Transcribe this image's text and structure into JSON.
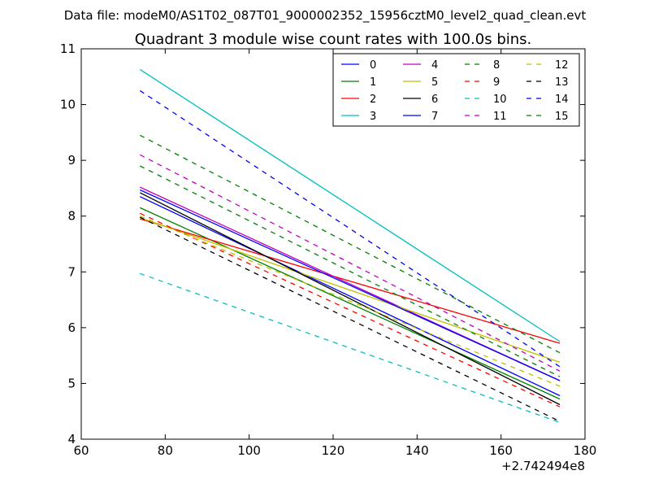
{
  "chart_data": {
    "type": "line",
    "suptitle": "Data file: modeM0/AS1T02_087T01_9000002352_15956cztM0_level2_quad_clean.evt",
    "title": "Quadrant 3 module wise count rates with 100.0s bins.",
    "xlabel": "",
    "ylabel": "",
    "x_offset_label": "+2.742494e8",
    "xlim": [
      60,
      180
    ],
    "ylim": [
      4,
      11
    ],
    "xticks": [
      60,
      80,
      100,
      120,
      140,
      160,
      180
    ],
    "yticks": [
      4,
      5,
      6,
      7,
      8,
      9,
      10,
      11
    ],
    "grid": false,
    "legend_position": "top-right",
    "x": [
      74,
      174
    ],
    "series": [
      {
        "name": "0",
        "color": "#0000ff",
        "style": "solid",
        "values": [
          8.35,
          4.78
        ]
      },
      {
        "name": "1",
        "color": "#008000",
        "style": "solid",
        "values": [
          8.15,
          4.72
        ]
      },
      {
        "name": "2",
        "color": "#ff0000",
        "style": "solid",
        "values": [
          7.95,
          5.72
        ]
      },
      {
        "name": "3",
        "color": "#00bfbf",
        "style": "solid",
        "values": [
          10.63,
          5.75
        ]
      },
      {
        "name": "4",
        "color": "#bf00bf",
        "style": "solid",
        "values": [
          8.52,
          5.05
        ]
      },
      {
        "name": "5",
        "color": "#bfbf00",
        "style": "solid",
        "values": [
          7.97,
          5.38
        ]
      },
      {
        "name": "6",
        "color": "#000000",
        "style": "solid",
        "values": [
          8.42,
          4.62
        ]
      },
      {
        "name": "7",
        "color": "#0000ff",
        "style": "solid",
        "values": [
          8.47,
          5.05
        ]
      },
      {
        "name": "8",
        "color": "#008000",
        "style": "dashed",
        "values": [
          8.9,
          5.12
        ]
      },
      {
        "name": "9",
        "color": "#ff0000",
        "style": "dashed",
        "values": [
          8.05,
          4.58
        ]
      },
      {
        "name": "10",
        "color": "#00bfbf",
        "style": "dashed",
        "values": [
          6.97,
          4.3
        ]
      },
      {
        "name": "11",
        "color": "#bf00bf",
        "style": "dashed",
        "values": [
          9.1,
          5.22
        ]
      },
      {
        "name": "12",
        "color": "#bfbf00",
        "style": "dashed",
        "values": [
          8.0,
          4.95
        ]
      },
      {
        "name": "13",
        "color": "#000000",
        "style": "dashed",
        "values": [
          7.98,
          4.32
        ]
      },
      {
        "name": "14",
        "color": "#0000ff",
        "style": "dashed",
        "values": [
          10.25,
          5.3
        ]
      },
      {
        "name": "15",
        "color": "#008000",
        "style": "dashed",
        "values": [
          9.45,
          5.55
        ]
      }
    ]
  }
}
